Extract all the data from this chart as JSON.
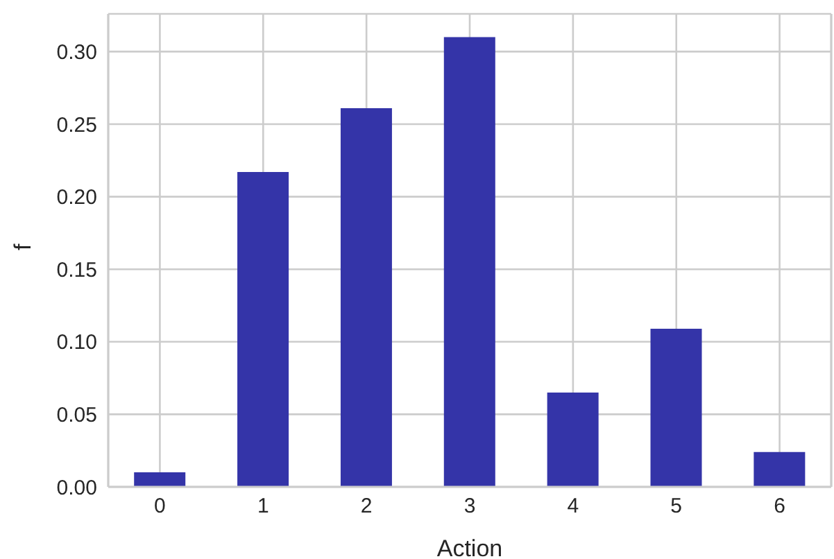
{
  "chart_data": {
    "type": "bar",
    "xlabel": "Action",
    "ylabel": "f",
    "categories": [
      "0",
      "1",
      "2",
      "3",
      "4",
      "5",
      "6"
    ],
    "values": [
      0.01,
      0.217,
      0.261,
      0.31,
      0.065,
      0.109,
      0.024
    ],
    "color": "#3434a8",
    "ylim": [
      0,
      0.326
    ],
    "yticks": [
      {
        "value": 0,
        "label": "0.00"
      },
      {
        "value": 0.05,
        "label": "0.05"
      },
      {
        "value": 0.1,
        "label": "0.10"
      },
      {
        "value": 0.15,
        "label": "0.15"
      },
      {
        "value": 0.2,
        "label": "0.20"
      },
      {
        "value": 0.25,
        "label": "0.25"
      },
      {
        "value": 0.3,
        "label": "0.30"
      }
    ],
    "grid": true,
    "legend": false
  }
}
